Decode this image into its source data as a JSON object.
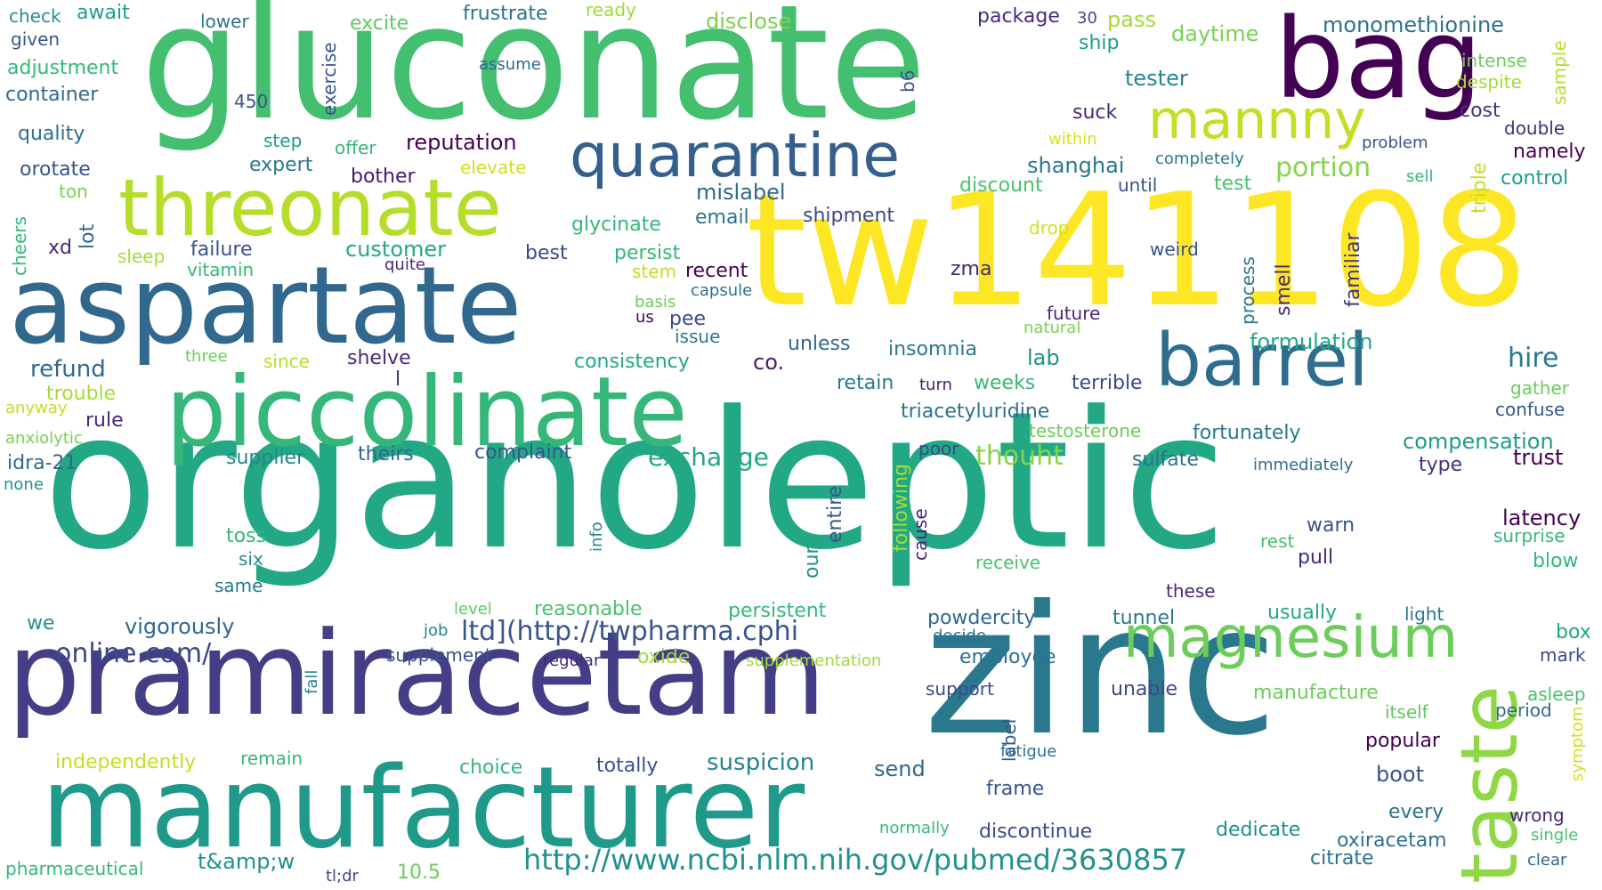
{
  "words": [
    {
      "text": "organoleptic",
      "color": "#22a884"
    },
    {
      "text": "tw141108",
      "color": "#fde725"
    },
    {
      "text": "gluconate",
      "color": "#44bf70"
    },
    {
      "text": "pramiracetam",
      "color": "#433e85"
    },
    {
      "text": "zinc",
      "color": "#2a788e"
    },
    {
      "text": "manufacturer",
      "color": "#1f9a8a"
    },
    {
      "text": "aspartate",
      "color": "#31688e"
    },
    {
      "text": "piccolinate",
      "color": "#35b779"
    },
    {
      "text": "bag",
      "color": "#440154"
    },
    {
      "text": "threonate",
      "color": "#b5de2b"
    },
    {
      "text": "quarantine",
      "color": "#355f8d"
    },
    {
      "text": "barrel",
      "color": "#2f6c8e"
    },
    {
      "text": "taste",
      "color": "#8fd744"
    },
    {
      "text": "magnesium",
      "color": "#6ccd5a"
    },
    {
      "text": "mannny",
      "color": "#c2df23"
    },
    {
      "text": "http://www.ncbi.nlm.nih.gov/pubmed/3630857",
      "color": "#21918c"
    },
    {
      "text": "ltd](http://twpharma.cphi",
      "color": "#39568c"
    },
    {
      "text": "online.com/",
      "color": "#3e4989"
    },
    {
      "text": "check",
      "color": "#21918c"
    },
    {
      "text": "await",
      "color": "#1f9e89"
    },
    {
      "text": "given",
      "color": "#39568c"
    },
    {
      "text": "adjustment",
      "color": "#35b779"
    },
    {
      "text": "container",
      "color": "#31688e"
    },
    {
      "text": "quality",
      "color": "#2c728e"
    },
    {
      "text": "orotate",
      "color": "#3b528b"
    },
    {
      "text": "ton",
      "color": "#7ad151"
    },
    {
      "text": "cheers",
      "color": "#35b779"
    },
    {
      "text": "xd",
      "color": "#482878"
    },
    {
      "text": "lot",
      "color": "#31688e"
    },
    {
      "text": "sleep",
      "color": "#a5db36"
    },
    {
      "text": "vitamin",
      "color": "#35b779"
    },
    {
      "text": "failure",
      "color": "#3b528b"
    },
    {
      "text": "lower",
      "color": "#2c728e"
    },
    {
      "text": "excite",
      "color": "#5ec962"
    },
    {
      "text": "exercise",
      "color": "#3b528b"
    },
    {
      "text": "frustrate",
      "color": "#2c728e"
    },
    {
      "text": "ready",
      "color": "#a0da39"
    },
    {
      "text": "assume",
      "color": "#31688e"
    },
    {
      "text": "450",
      "color": "#3b528b"
    },
    {
      "text": "step",
      "color": "#1f9e89"
    },
    {
      "text": "offer",
      "color": "#35b779"
    },
    {
      "text": "expert",
      "color": "#2a788e"
    },
    {
      "text": "reputation",
      "color": "#440154"
    },
    {
      "text": "bother",
      "color": "#481a6c"
    },
    {
      "text": "elevate",
      "color": "#d0e11c"
    },
    {
      "text": "disclose",
      "color": "#7ad151"
    },
    {
      "text": "b6",
      "color": "#3b528b"
    },
    {
      "text": "package",
      "color": "#472d7b"
    },
    {
      "text": "30",
      "color": "#3e4989"
    },
    {
      "text": "pass",
      "color": "#a5db36"
    },
    {
      "text": "ship",
      "color": "#1f9e89"
    },
    {
      "text": "daytime",
      "color": "#7ad151"
    },
    {
      "text": "tester",
      "color": "#25858e"
    },
    {
      "text": "monomethionine",
      "color": "#2c728e"
    },
    {
      "text": "intense",
      "color": "#6ccd5a"
    },
    {
      "text": "despite",
      "color": "#a5db36"
    },
    {
      "text": "sample",
      "color": "#b5de2b"
    },
    {
      "text": "cost",
      "color": "#46327e"
    },
    {
      "text": "double",
      "color": "#472d7b"
    },
    {
      "text": "problem",
      "color": "#3b528b"
    },
    {
      "text": "namely",
      "color": "#440154"
    },
    {
      "text": "triple",
      "color": "#c2df23"
    },
    {
      "text": "control",
      "color": "#1f9e89"
    },
    {
      "text": "sell",
      "color": "#35b779"
    },
    {
      "text": "suck",
      "color": "#482878"
    },
    {
      "text": "within",
      "color": "#d8e219"
    },
    {
      "text": "shanghai",
      "color": "#2a788e"
    },
    {
      "text": "completely",
      "color": "#2a788e"
    },
    {
      "text": "portion",
      "color": "#86d549"
    },
    {
      "text": "test",
      "color": "#4ac16d"
    },
    {
      "text": "until",
      "color": "#3b528b"
    },
    {
      "text": "mislabel",
      "color": "#31688e"
    },
    {
      "text": "discount",
      "color": "#4ac16d"
    },
    {
      "text": "email",
      "color": "#2c728e"
    },
    {
      "text": "shipment",
      "color": "#3e4989"
    },
    {
      "text": "glycinate",
      "color": "#35b779"
    },
    {
      "text": "customer",
      "color": "#22a884"
    },
    {
      "text": "best",
      "color": "#3e4989"
    },
    {
      "text": "persist",
      "color": "#35b779"
    },
    {
      "text": "stem",
      "color": "#c2df23"
    },
    {
      "text": "recent",
      "color": "#440154"
    },
    {
      "text": "drop",
      "color": "#d0e11c"
    },
    {
      "text": "weird",
      "color": "#3b528b"
    },
    {
      "text": "process",
      "color": "#2a788e"
    },
    {
      "text": "smell",
      "color": "#482878"
    },
    {
      "text": "familiar",
      "color": "#46327e"
    },
    {
      "text": "quite",
      "color": "#482878"
    },
    {
      "text": "basis",
      "color": "#6ccd5a"
    },
    {
      "text": "capsule",
      "color": "#2c728e"
    },
    {
      "text": "us",
      "color": "#440154"
    },
    {
      "text": "pee",
      "color": "#3e4989"
    },
    {
      "text": "issue",
      "color": "#2a788e"
    },
    {
      "text": "zma",
      "color": "#482878"
    },
    {
      "text": "future",
      "color": "#482878"
    },
    {
      "text": "natural",
      "color": "#7ad151"
    },
    {
      "text": "formulation",
      "color": "#22a884"
    },
    {
      "text": "hire",
      "color": "#29788e"
    },
    {
      "text": "unless",
      "color": "#31688e"
    },
    {
      "text": "insomnia",
      "color": "#2a788e"
    },
    {
      "text": "lab",
      "color": "#21918c"
    },
    {
      "text": "refund",
      "color": "#31688e"
    },
    {
      "text": "three",
      "color": "#6ccd5a"
    },
    {
      "text": "since",
      "color": "#b5de2b"
    },
    {
      "text": "shelve",
      "color": "#482878"
    },
    {
      "text": "consistency",
      "color": "#22a884"
    },
    {
      "text": "co.",
      "color": "#481a6c"
    },
    {
      "text": "l",
      "color": "#482878"
    },
    {
      "text": "retain",
      "color": "#2a788e"
    },
    {
      "text": "turn",
      "color": "#481a6c"
    },
    {
      "text": "weeks",
      "color": "#35b779"
    },
    {
      "text": "terrible",
      "color": "#3e4989"
    },
    {
      "text": "gather",
      "color": "#6ccd5a"
    },
    {
      "text": "trouble",
      "color": "#a5db36"
    },
    {
      "text": "anyway",
      "color": "#c2df23"
    },
    {
      "text": "rule",
      "color": "#482878"
    },
    {
      "text": "triacetyluridine",
      "color": "#2c728e"
    },
    {
      "text": "confuse",
      "color": "#39568c"
    },
    {
      "text": "anxiolytic",
      "color": "#7ad151"
    },
    {
      "text": "testosterone",
      "color": "#6ccd5a"
    },
    {
      "text": "fortunately",
      "color": "#2a788e"
    },
    {
      "text": "compensation",
      "color": "#1f9e89"
    },
    {
      "text": "supplier",
      "color": "#25858e"
    },
    {
      "text": "theirs",
      "color": "#31688e"
    },
    {
      "text": "complaint",
      "color": "#39568c"
    },
    {
      "text": "exchange",
      "color": "#22a884"
    },
    {
      "text": "poor",
      "color": "#3e4989"
    },
    {
      "text": "thouht",
      "color": "#86d549"
    },
    {
      "text": "sulfate",
      "color": "#2c728e"
    },
    {
      "text": "immediately",
      "color": "#2c728e"
    },
    {
      "text": "type",
      "color": "#46327e"
    },
    {
      "text": "trust",
      "color": "#440154"
    },
    {
      "text": "idra-21",
      "color": "#31688e"
    },
    {
      "text": "none",
      "color": "#21918c"
    },
    {
      "text": "following",
      "color": "#a5db36"
    },
    {
      "text": "entire",
      "color": "#39568c"
    },
    {
      "text": "cause",
      "color": "#482878"
    },
    {
      "text": "our",
      "color": "#21918c"
    },
    {
      "text": "info",
      "color": "#25858e"
    },
    {
      "text": "toss",
      "color": "#35b779"
    },
    {
      "text": "six",
      "color": "#21918c"
    },
    {
      "text": "same",
      "color": "#2a788e"
    },
    {
      "text": "receive",
      "color": "#4ac16d"
    },
    {
      "text": "rest",
      "color": "#4ac16d"
    },
    {
      "text": "warn",
      "color": "#3b528b"
    },
    {
      "text": "pull",
      "color": "#482878"
    },
    {
      "text": "latency",
      "color": "#440154"
    },
    {
      "text": "surprise",
      "color": "#35b779"
    },
    {
      "text": "blow",
      "color": "#35b779"
    },
    {
      "text": "level",
      "color": "#5ec962"
    },
    {
      "text": "reasonable",
      "color": "#4ac16d"
    },
    {
      "text": "persistent",
      "color": "#35b779"
    },
    {
      "text": "powdercity",
      "color": "#31688e"
    },
    {
      "text": "tunnel",
      "color": "#2a788e"
    },
    {
      "text": "usually",
      "color": "#22a884"
    },
    {
      "text": "these",
      "color": "#482878"
    },
    {
      "text": "light",
      "color": "#2a788e"
    },
    {
      "text": "box",
      "color": "#22a884"
    },
    {
      "text": "mark",
      "color": "#3e4989"
    },
    {
      "text": "we",
      "color": "#21918c"
    },
    {
      "text": "vigorously",
      "color": "#31688e"
    },
    {
      "text": "job",
      "color": "#25858e"
    },
    {
      "text": "decide",
      "color": "#2c728e"
    },
    {
      "text": "employee",
      "color": "#2c728e"
    },
    {
      "text": "supplement",
      "color": "#3b528b"
    },
    {
      "text": "fall",
      "color": "#25858e"
    },
    {
      "text": "regular",
      "color": "#482878"
    },
    {
      "text": "oxide",
      "color": "#a0da39"
    },
    {
      "text": "supplementation",
      "color": "#a0da39"
    },
    {
      "text": "asleep",
      "color": "#4ac16d"
    },
    {
      "text": "support",
      "color": "#3e4989"
    },
    {
      "text": "unable",
      "color": "#3e4989"
    },
    {
      "text": "manufacture",
      "color": "#6ccd5a"
    },
    {
      "text": "itself",
      "color": "#5ec962"
    },
    {
      "text": "period",
      "color": "#31688e"
    },
    {
      "text": "label",
      "color": "#3b528b"
    },
    {
      "text": "symptom",
      "color": "#d0e11c"
    },
    {
      "text": "independently",
      "color": "#c2df23"
    },
    {
      "text": "remain",
      "color": "#35b779"
    },
    {
      "text": "choice",
      "color": "#35b779"
    },
    {
      "text": "totally",
      "color": "#3b528b"
    },
    {
      "text": "suspicion",
      "color": "#25858e"
    },
    {
      "text": "send",
      "color": "#31688e"
    },
    {
      "text": "fatigue",
      "color": "#2c728e"
    },
    {
      "text": "popular",
      "color": "#440154"
    },
    {
      "text": "boot",
      "color": "#3b528b"
    },
    {
      "text": "frame",
      "color": "#39568c"
    },
    {
      "text": "wrong",
      "color": "#482878"
    },
    {
      "text": "every",
      "color": "#2c728e"
    },
    {
      "text": "single",
      "color": "#4ac16d"
    },
    {
      "text": "normally",
      "color": "#35b779"
    },
    {
      "text": "discontinue",
      "color": "#3e4989"
    },
    {
      "text": "dedicate",
      "color": "#21918c"
    },
    {
      "text": "oxiracetam",
      "color": "#2c728e"
    },
    {
      "text": "clear",
      "color": "#31688e"
    },
    {
      "text": "pharmaceutical",
      "color": "#35b779"
    },
    {
      "text": "t&amp;w",
      "color": "#21918c"
    },
    {
      "text": "tl;dr",
      "color": "#3e4989"
    },
    {
      "text": "10.5",
      "color": "#6ccd5a"
    },
    {
      "text": "citrate",
      "color": "#2c728e"
    }
  ]
}
